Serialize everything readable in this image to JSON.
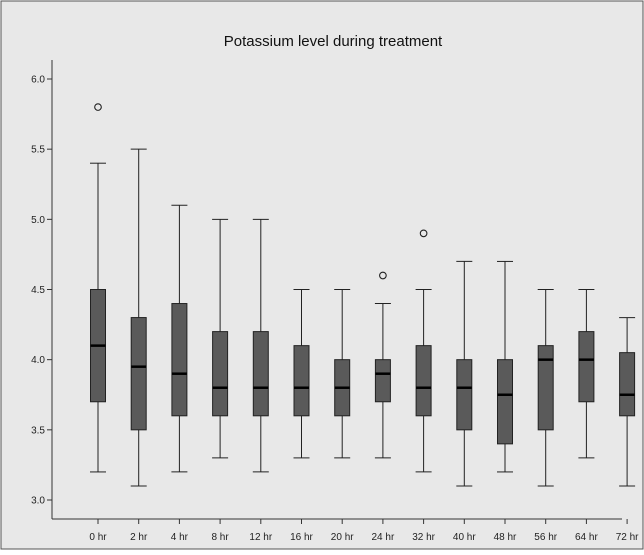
{
  "chart_data": {
    "type": "box",
    "title": "Potassium level during treatment",
    "xlabel": "",
    "ylabel": "",
    "ylim": [
      3.0,
      6.0
    ],
    "yticks": [
      "3.0",
      "3.5",
      "4.0",
      "4.5",
      "5.0",
      "5.5",
      "6.0"
    ],
    "categories": [
      "0 hr",
      "2 hr",
      "4 hr",
      "8 hr",
      "12 hr",
      "16 hr",
      "20 hr",
      "24 hr",
      "32 hr",
      "40 hr",
      "48 hr",
      "56 hr",
      "64 hr",
      "72 hr"
    ],
    "boxes": [
      {
        "category": "0 hr",
        "whisker_low": 3.2,
        "q1": 3.7,
        "median": 4.1,
        "q3": 4.5,
        "whisker_high": 5.4,
        "outliers": [
          5.8
        ]
      },
      {
        "category": "2 hr",
        "whisker_low": 3.1,
        "q1": 3.5,
        "median": 3.95,
        "q3": 4.3,
        "whisker_high": 5.5,
        "outliers": []
      },
      {
        "category": "4 hr",
        "whisker_low": 3.2,
        "q1": 3.6,
        "median": 3.9,
        "q3": 4.4,
        "whisker_high": 5.1,
        "outliers": []
      },
      {
        "category": "8 hr",
        "whisker_low": 3.3,
        "q1": 3.6,
        "median": 3.8,
        "q3": 4.2,
        "whisker_high": 5.0,
        "outliers": []
      },
      {
        "category": "12 hr",
        "whisker_low": 3.2,
        "q1": 3.6,
        "median": 3.8,
        "q3": 4.2,
        "whisker_high": 5.0,
        "outliers": []
      },
      {
        "category": "16 hr",
        "whisker_low": 3.3,
        "q1": 3.6,
        "median": 3.8,
        "q3": 4.1,
        "whisker_high": 4.5,
        "outliers": []
      },
      {
        "category": "20 hr",
        "whisker_low": 3.3,
        "q1": 3.6,
        "median": 3.8,
        "q3": 4.0,
        "whisker_high": 4.5,
        "outliers": []
      },
      {
        "category": "24 hr",
        "whisker_low": 3.3,
        "q1": 3.7,
        "median": 3.9,
        "q3": 4.0,
        "whisker_high": 4.4,
        "outliers": [
          4.6
        ]
      },
      {
        "category": "32 hr",
        "whisker_low": 3.2,
        "q1": 3.6,
        "median": 3.8,
        "q3": 4.1,
        "whisker_high": 4.5,
        "outliers": [
          4.9
        ]
      },
      {
        "category": "40 hr",
        "whisker_low": 3.1,
        "q1": 3.5,
        "median": 3.8,
        "q3": 4.0,
        "whisker_high": 4.7,
        "outliers": []
      },
      {
        "category": "48 hr",
        "whisker_low": 3.2,
        "q1": 3.4,
        "median": 3.75,
        "q3": 4.0,
        "whisker_high": 4.7,
        "outliers": []
      },
      {
        "category": "56 hr",
        "whisker_low": 3.1,
        "q1": 3.5,
        "median": 4.0,
        "q3": 4.1,
        "whisker_high": 4.5,
        "outliers": []
      },
      {
        "category": "64 hr",
        "whisker_low": 3.3,
        "q1": 3.7,
        "median": 4.0,
        "q3": 4.2,
        "whisker_high": 4.5,
        "outliers": []
      },
      {
        "category": "72 hr",
        "whisker_low": 3.1,
        "q1": 3.6,
        "median": 3.75,
        "q3": 4.05,
        "whisker_high": 4.3,
        "outliers": []
      }
    ],
    "grid": false,
    "colors": {
      "plot_background": "#e8e8e8",
      "box_fill": "#5a5a5a",
      "median_line": "#000000",
      "whisker": "#222222",
      "axis": "#333333"
    }
  }
}
